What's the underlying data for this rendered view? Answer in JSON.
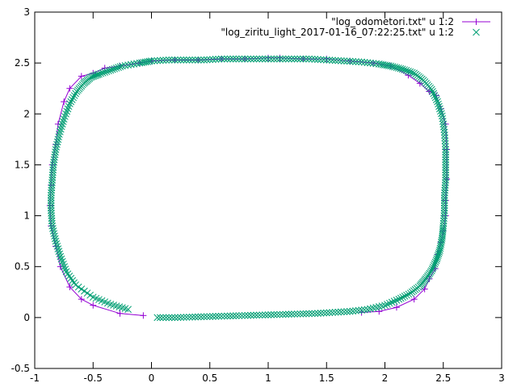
{
  "chart_data": {
    "type": "scatter",
    "title": "",
    "xlabel": "",
    "ylabel": "",
    "xlim": [
      -1,
      3
    ],
    "ylim": [
      -0.5,
      3
    ],
    "xticks": [
      "-1",
      "-0.5",
      "0",
      "0.5",
      "1",
      "1.5",
      "2",
      "2.5",
      "3"
    ],
    "yticks": [
      "-0.5",
      "0",
      "0.5",
      "1",
      "1.5",
      "2",
      "2.5",
      "3"
    ],
    "grid": false,
    "legend_position": "top-right",
    "series": [
      {
        "name": "\"log_odometori.txt\" u 1:2",
        "style": "linespoints",
        "marker": "plus",
        "color": "#9400d3",
        "x": [
          -0.07,
          -0.27,
          -0.5,
          -0.6,
          -0.7,
          -0.78,
          -0.82,
          -0.86,
          -0.87,
          -0.86,
          -0.85,
          -0.82,
          -0.8,
          -0.75,
          -0.7,
          -0.6,
          -0.5,
          -0.4,
          -0.27,
          -0.1,
          0.0,
          0.2,
          0.4,
          0.6,
          0.8,
          1.0,
          1.1,
          1.3,
          1.5,
          1.7,
          1.9,
          2.05,
          2.2,
          2.3,
          2.38,
          2.44,
          2.48,
          2.52,
          2.53,
          2.53,
          2.52,
          2.52,
          2.5,
          2.48,
          2.45,
          2.43,
          2.38,
          2.34,
          2.25,
          2.1,
          1.95,
          1.8
        ],
        "y": [
          0.02,
          0.04,
          0.12,
          0.18,
          0.3,
          0.5,
          0.7,
          0.9,
          1.1,
          1.3,
          1.5,
          1.7,
          1.9,
          2.12,
          2.25,
          2.37,
          2.4,
          2.45,
          2.47,
          2.5,
          2.52,
          2.53,
          2.53,
          2.54,
          2.54,
          2.55,
          2.55,
          2.54,
          2.54,
          2.52,
          2.5,
          2.47,
          2.38,
          2.3,
          2.22,
          2.18,
          2.05,
          1.9,
          1.65,
          1.36,
          1.15,
          1.0,
          0.85,
          0.74,
          0.62,
          0.48,
          0.38,
          0.28,
          0.18,
          0.1,
          0.06,
          0.05
        ]
      },
      {
        "name": "\"log_ziritu_light_2017-01-16_07:22:25.txt\" u 1:2",
        "style": "points",
        "marker": "cross",
        "color": "#009e73",
        "x": [
          -0.2,
          -0.35,
          -0.5,
          -0.65,
          -0.73,
          -0.78,
          -0.82,
          -0.85,
          -0.86,
          -0.86,
          -0.85,
          -0.84,
          -0.82,
          -0.79,
          -0.75,
          -0.7,
          -0.64,
          -0.58,
          -0.52,
          -0.45,
          -0.35,
          -0.25,
          -0.1,
          0.0,
          0.15,
          0.3,
          0.45,
          0.6,
          0.75,
          0.9,
          1.05,
          1.2,
          1.35,
          1.5,
          1.65,
          1.8,
          1.95,
          2.05,
          2.15,
          2.25,
          2.33,
          2.4,
          2.45,
          2.49,
          2.51,
          2.52,
          2.52,
          2.52,
          2.51,
          2.51,
          2.5,
          2.49,
          2.47,
          2.44,
          2.4,
          2.35,
          2.3,
          2.22,
          2.12,
          2.0,
          1.85,
          1.7,
          1.55,
          1.4,
          1.25,
          1.1,
          0.95,
          0.8,
          0.65,
          0.5,
          0.35,
          0.2,
          0.05
        ],
        "y": [
          0.08,
          0.13,
          0.2,
          0.32,
          0.45,
          0.6,
          0.75,
          0.9,
          1.05,
          1.2,
          1.35,
          1.5,
          1.65,
          1.8,
          1.95,
          2.1,
          2.22,
          2.3,
          2.36,
          2.39,
          2.43,
          2.47,
          2.5,
          2.52,
          2.53,
          2.53,
          2.53,
          2.54,
          2.54,
          2.54,
          2.54,
          2.54,
          2.54,
          2.53,
          2.52,
          2.51,
          2.49,
          2.47,
          2.44,
          2.4,
          2.33,
          2.24,
          2.12,
          1.98,
          1.82,
          1.65,
          1.5,
          1.35,
          1.2,
          1.05,
          0.9,
          0.78,
          0.66,
          0.56,
          0.46,
          0.38,
          0.31,
          0.24,
          0.18,
          0.12,
          0.08,
          0.06,
          0.05,
          0.04,
          0.035,
          0.03,
          0.025,
          0.02,
          0.015,
          0.01,
          0.005,
          0.0,
          0.0
        ]
      }
    ]
  }
}
